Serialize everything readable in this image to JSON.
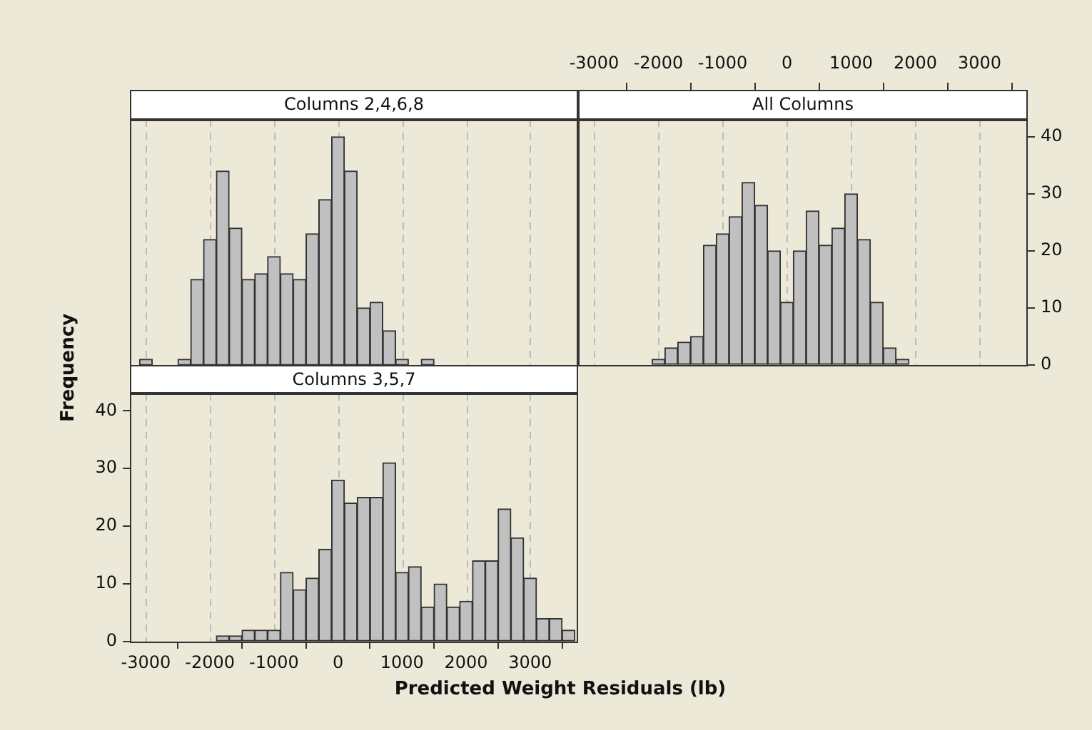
{
  "chart_data": [
    {
      "type": "histogram",
      "title": "Columns 2,4,6,8",
      "color": "#c0c0c0",
      "bins": [
        -3100,
        -2900,
        -2700,
        -2500,
        -2300,
        -2100,
        -1900,
        -1700,
        -1500,
        -1300,
        -1100,
        -900,
        -700,
        -500,
        -300,
        -100,
        100,
        300,
        500,
        700,
        900,
        1100,
        1300,
        1500
      ],
      "values": [
        1,
        0,
        0,
        1,
        15,
        22,
        34,
        24,
        15,
        16,
        19,
        16,
        15,
        23,
        29,
        40,
        34,
        10,
        11,
        6,
        1,
        0,
        1
      ],
      "xlim": [
        -3250,
        3750
      ],
      "xticks": [
        -3000,
        -2000,
        -1000,
        0,
        1000,
        2000,
        3000
      ],
      "ylim": [
        0,
        43
      ],
      "grid": "x",
      "tick_labels": false
    },
    {
      "type": "histogram",
      "title": "All Columns",
      "color": "#c0c0c0",
      "bins": [
        -2100,
        -1900,
        -1700,
        -1500,
        -1300,
        -1100,
        -900,
        -700,
        -500,
        -300,
        -100,
        100,
        300,
        500,
        700,
        900,
        1100,
        1300,
        1500,
        1700,
        1900
      ],
      "values": [
        1,
        3,
        4,
        5,
        21,
        23,
        26,
        32,
        28,
        20,
        11,
        20,
        27,
        21,
        24,
        30,
        22,
        11,
        3,
        1
      ],
      "xlim": [
        -3250,
        3750
      ],
      "xticks": [
        -3000,
        -2000,
        -1000,
        0,
        1000,
        2000,
        3000
      ],
      "ylim": [
        0,
        43
      ],
      "yticks": [
        0,
        10,
        20,
        30,
        40
      ],
      "grid": "x"
    },
    {
      "type": "histogram",
      "title": "Columns 3,5,7",
      "xlabel": "Predicted Weight Residuals (lb)",
      "ylabel": "Frequency",
      "color": "#c0c0c0",
      "bins": [
        -1900,
        -1700,
        -1500,
        -1300,
        -1100,
        -900,
        -700,
        -500,
        -300,
        -100,
        100,
        300,
        500,
        700,
        900,
        1100,
        1300,
        1500,
        1700,
        1900,
        2100,
        2300,
        2500,
        2700,
        2900,
        3100,
        3300,
        3500,
        3700
      ],
      "values": [
        1,
        1,
        2,
        2,
        2,
        12,
        9,
        11,
        16,
        28,
        24,
        25,
        25,
        31,
        12,
        13,
        6,
        10,
        6,
        7,
        14,
        14,
        23,
        18,
        11,
        4,
        4,
        2
      ],
      "xlim": [
        -3250,
        3750
      ],
      "xticks": [
        -3000,
        -2000,
        -1000,
        0,
        1000,
        2000,
        3000
      ],
      "ylim": [
        0,
        43
      ],
      "yticks": [
        0,
        10,
        20,
        30,
        40
      ],
      "grid": "x"
    }
  ]
}
